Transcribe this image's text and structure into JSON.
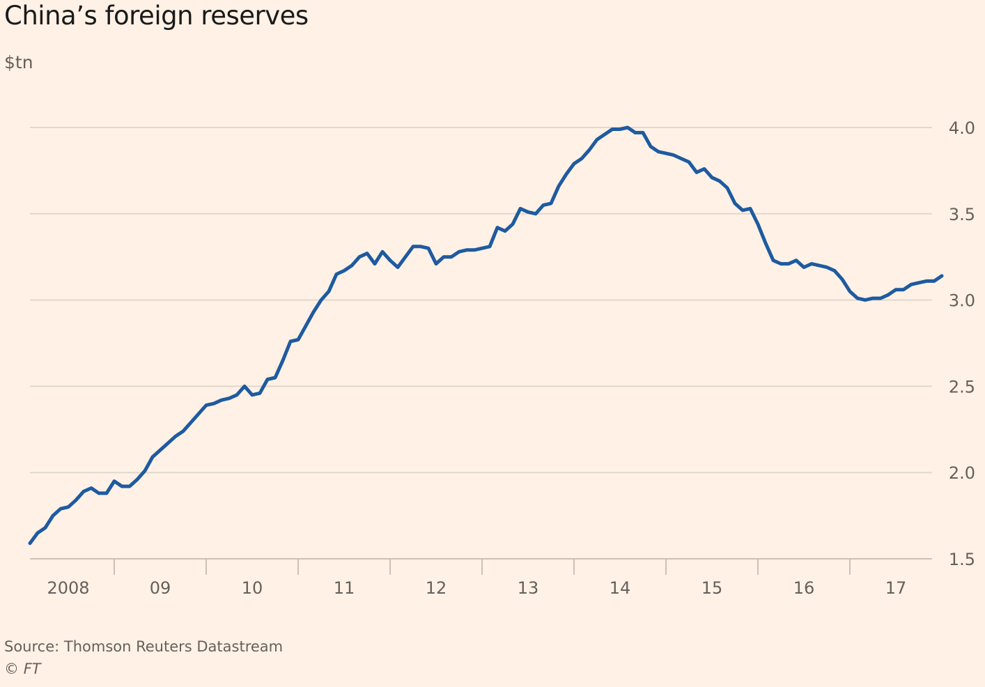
{
  "chart_data": {
    "type": "line",
    "title": "China’s foreign reserves",
    "subtitle": "$tn",
    "xlabel": "",
    "ylabel": "$tn",
    "ylim": [
      1.5,
      4.0
    ],
    "yticks": [
      1.5,
      2.0,
      2.5,
      3.0,
      3.5,
      4.0
    ],
    "ytick_labels": [
      "1.5",
      "2.0",
      "2.5",
      "3.0",
      "3.5",
      "4.0"
    ],
    "y_axis_side": "right",
    "grid": true,
    "xlim": [
      "2008-02",
      "2017-12"
    ],
    "xticks": [
      "2008",
      "09",
      "10",
      "11",
      "12",
      "13",
      "14",
      "15",
      "16",
      "17"
    ],
    "legend": null,
    "series": [
      {
        "name": "China's foreign reserves",
        "color": "#1e5aa0",
        "start": "2008-02",
        "frequency": "monthly",
        "values": [
          1.59,
          1.65,
          1.68,
          1.75,
          1.79,
          1.8,
          1.84,
          1.89,
          1.91,
          1.88,
          1.88,
          1.95,
          1.92,
          1.92,
          1.96,
          2.01,
          2.09,
          2.13,
          2.17,
          2.21,
          2.24,
          2.29,
          2.34,
          2.39,
          2.4,
          2.42,
          2.43,
          2.45,
          2.5,
          2.45,
          2.46,
          2.54,
          2.55,
          2.65,
          2.76,
          2.77,
          2.85,
          2.93,
          3.0,
          3.05,
          3.15,
          3.17,
          3.2,
          3.25,
          3.27,
          3.21,
          3.28,
          3.23,
          3.19,
          3.25,
          3.31,
          3.31,
          3.3,
          3.21,
          3.25,
          3.25,
          3.28,
          3.29,
          3.29,
          3.3,
          3.31,
          3.42,
          3.4,
          3.44,
          3.53,
          3.51,
          3.5,
          3.55,
          3.56,
          3.66,
          3.73,
          3.79,
          3.82,
          3.87,
          3.93,
          3.96,
          3.99,
          3.99,
          4.0,
          3.97,
          3.97,
          3.89,
          3.86,
          3.85,
          3.84,
          3.82,
          3.8,
          3.74,
          3.76,
          3.71,
          3.69,
          3.65,
          3.56,
          3.52,
          3.53,
          3.44,
          3.33,
          3.23,
          3.21,
          3.21,
          3.23,
          3.19,
          3.21,
          3.2,
          3.19,
          3.17,
          3.12,
          3.05,
          3.01,
          3.0,
          3.01,
          3.01,
          3.03,
          3.06,
          3.06,
          3.09,
          3.1,
          3.11,
          3.11,
          3.14
        ]
      }
    ]
  },
  "footer": {
    "source": "Source: Thomson Reuters Datastream",
    "copyright_symbol": "©",
    "copyright_brand": "FT"
  }
}
